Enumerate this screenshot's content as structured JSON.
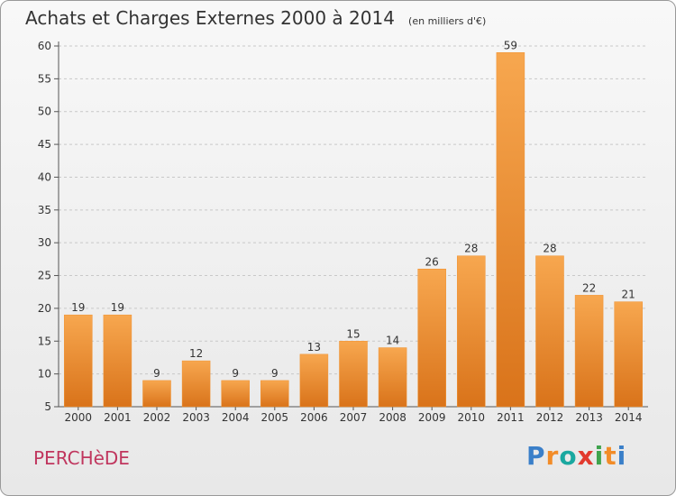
{
  "header": {
    "title": "Achats et Charges Externes 2000 à 2014",
    "unit": "(en milliers d'€)"
  },
  "footer": {
    "commune": "PERCHèDE",
    "brand": "Proxiti"
  },
  "colors": {
    "bar": "#f0912f",
    "bar_dark": "#d9731a",
    "commune_text": "#c0365e",
    "brand_letters": [
      "#3a7fc9",
      "#f28c28",
      "#1aa8a0",
      "#e23a2e",
      "#3fa34d",
      "#f28c28",
      "#3a7fc9"
    ]
  },
  "chart_data": {
    "type": "bar",
    "title": "Achats et Charges Externes 2000 à 2014",
    "subtitle": "(en milliers d'€)",
    "categories": [
      "2000",
      "2001",
      "2002",
      "2003",
      "2004",
      "2005",
      "2006",
      "2007",
      "2008",
      "2009",
      "2010",
      "2011",
      "2012",
      "2013",
      "2014"
    ],
    "values": [
      19,
      19,
      9,
      12,
      9,
      9,
      13,
      15,
      14,
      26,
      28,
      59,
      28,
      22,
      21
    ],
    "ylim": [
      5,
      60
    ],
    "yticks": [
      5,
      10,
      15,
      20,
      25,
      30,
      35,
      40,
      45,
      50,
      55,
      60
    ],
    "grid": true,
    "data_labels": true
  }
}
